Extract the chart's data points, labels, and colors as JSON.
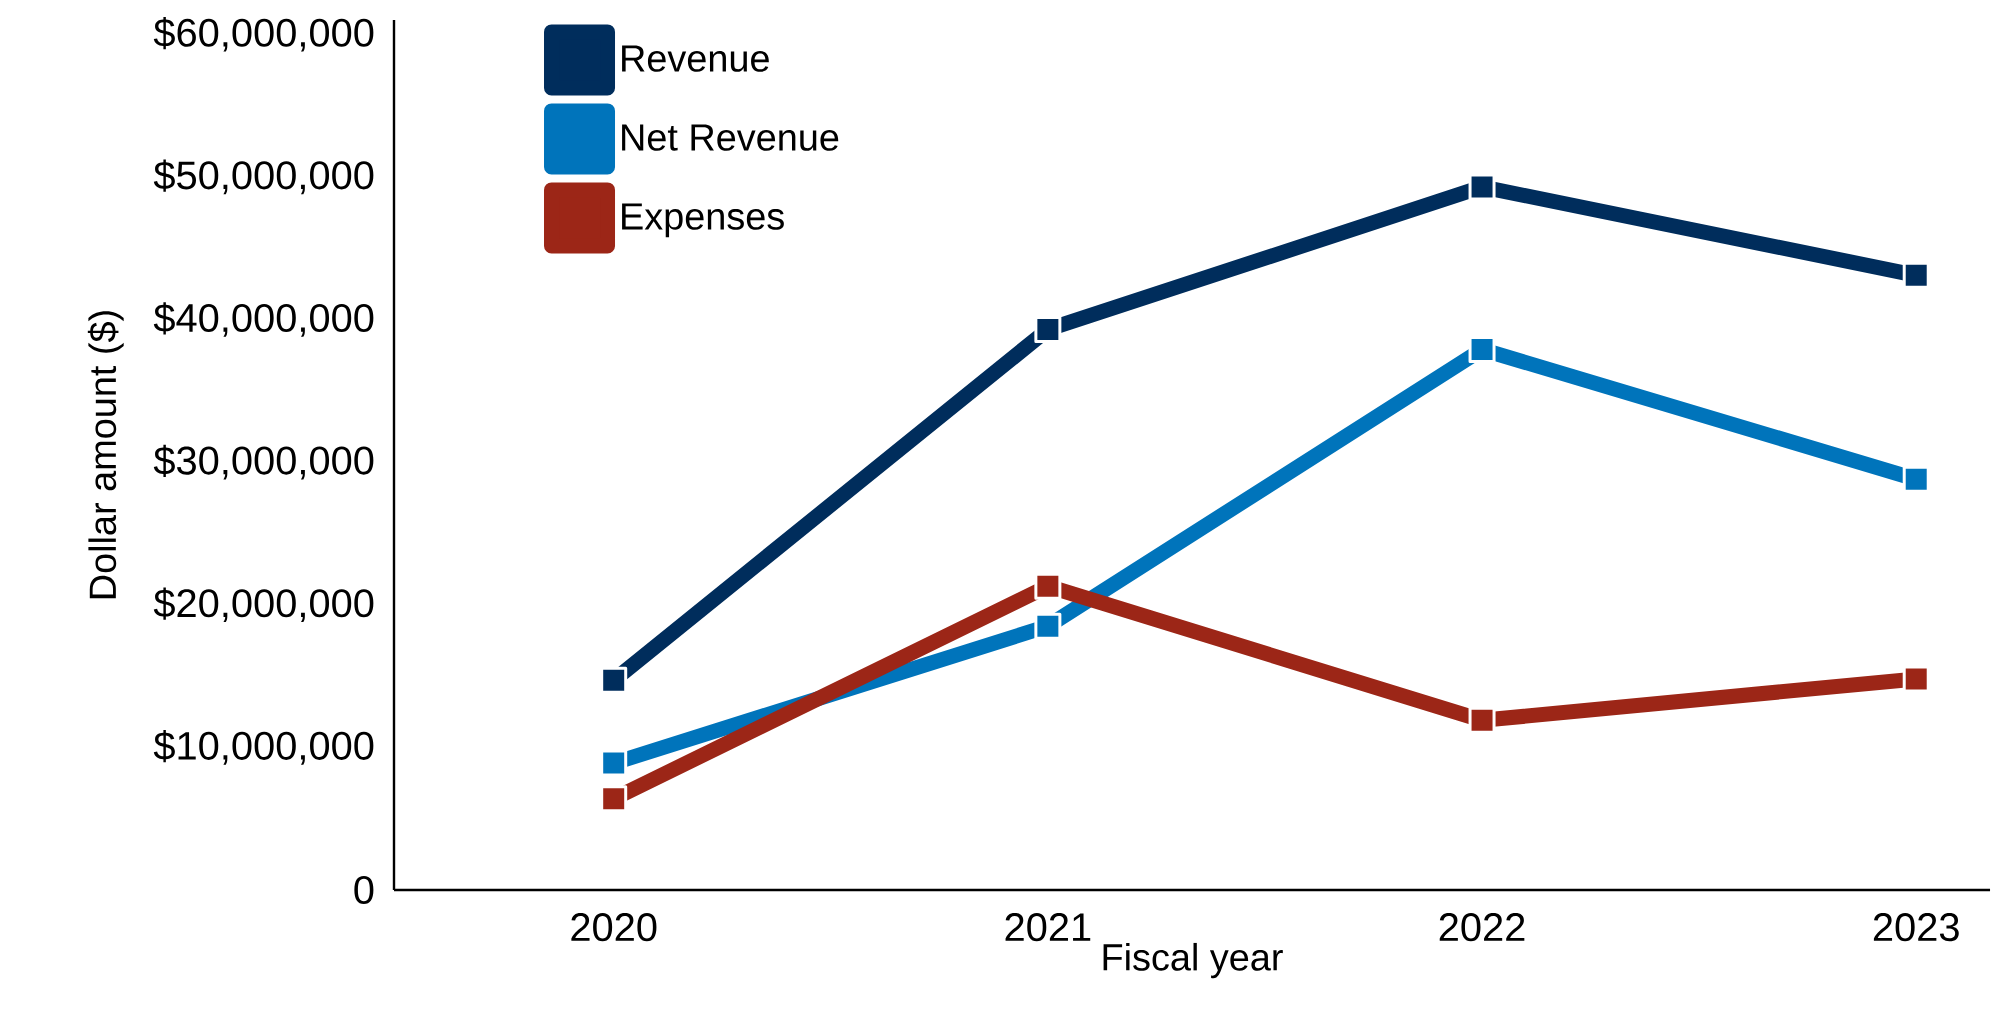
{
  "chart_data": {
    "type": "line",
    "xlabel": "Fiscal year",
    "ylabel": "Dollar amount ($)",
    "categories": [
      "2020",
      "2021",
      "2022",
      "2023"
    ],
    "series": [
      {
        "name": "Revenue",
        "color": "#002d5c",
        "values": [
          14700000,
          39300000,
          49300000,
          43100000
        ]
      },
      {
        "name": "Net Revenue",
        "color": "#0074bb",
        "values": [
          8900000,
          18500000,
          37900000,
          28800000
        ]
      },
      {
        "name": "Expenses",
        "color": "#9c2617",
        "values": [
          6400000,
          21300000,
          11900000,
          14800000
        ]
      }
    ],
    "ylim": [
      0,
      61000000
    ],
    "yticks": [
      0,
      {
        "value": 10000000,
        "label": "$10,000,000"
      },
      {
        "value": 20000000,
        "label": "$20,000,000"
      },
      {
        "value": 30000000,
        "label": "$30,000,000"
      },
      {
        "value": 40000000,
        "label": "$40,000,000"
      },
      {
        "value": 50000000,
        "label": "$50,000,000"
      },
      {
        "value": 60000000,
        "label": "$60,000,000"
      }
    ],
    "legend": "top left",
    "marker": "square"
  }
}
